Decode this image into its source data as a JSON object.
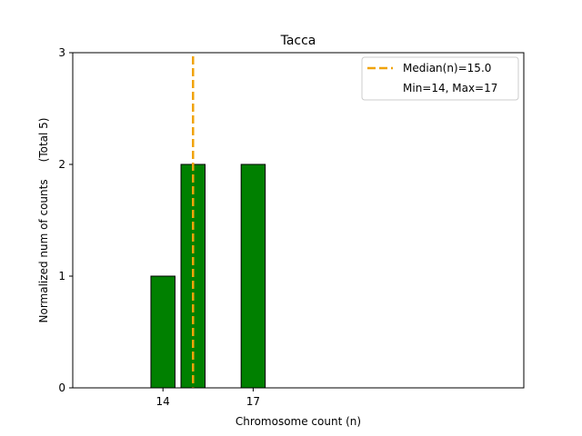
{
  "chart_data": {
    "type": "bar",
    "title": "Tacca",
    "xlabel": "Chromosome count (n)",
    "ylabel": "Normalized num of counts     (Total 5)",
    "xlim": [
      11,
      26
    ],
    "ylim": [
      0,
      3
    ],
    "yticks": [
      0,
      1,
      2,
      3
    ],
    "xticks": [
      14,
      17
    ],
    "bar_width": 0.8,
    "bars": [
      {
        "x": 14,
        "value": 1
      },
      {
        "x": 15,
        "value": 2
      },
      {
        "x": 17,
        "value": 2
      }
    ],
    "median_line": {
      "x": 15.0,
      "label": "Median(n)=15.0"
    },
    "legend": {
      "placement": "top-right",
      "entries": [
        "Median(n)=15.0",
        "Min=14, Max=17"
      ]
    },
    "grid": false,
    "colors": {
      "bar_fill": "#008000",
      "bar_edge": "#000000",
      "median_line": "#f0a30a"
    }
  }
}
